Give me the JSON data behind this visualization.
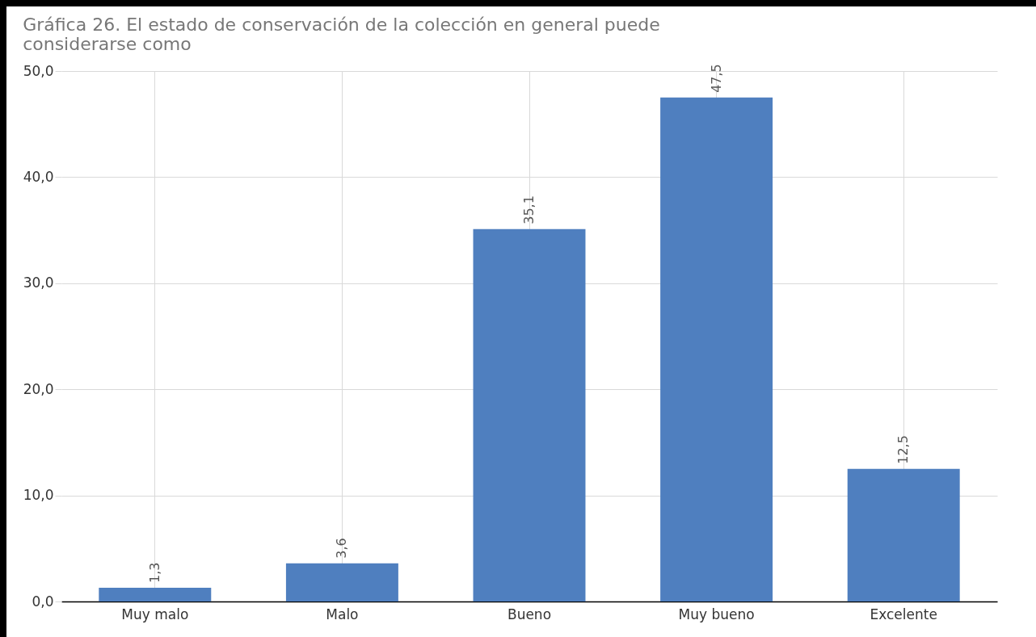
{
  "chart_data": {
    "type": "bar",
    "title": "Gráfica 26. El estado de conservación de la colección en general puede considerarse como",
    "categories": [
      "Muy malo",
      "Malo",
      "Bueno",
      "Muy bueno",
      "Excelente"
    ],
    "values": [
      1.3,
      3.6,
      35.1,
      47.5,
      12.5
    ],
    "value_labels": [
      "1,3",
      "3,6",
      "35,1",
      "47,5",
      "12,5"
    ],
    "color": "#4f7fbf",
    "ylim": [
      0,
      50
    ],
    "yticks": [
      {
        "value": 0,
        "label": "0,0"
      },
      {
        "value": 10,
        "label": "10,0"
      },
      {
        "value": 20,
        "label": "20,0"
      },
      {
        "value": 30,
        "label": "30,0"
      },
      {
        "value": 40,
        "label": "40,0"
      },
      {
        "value": 50,
        "label": "50,0"
      }
    ],
    "grid": true
  }
}
